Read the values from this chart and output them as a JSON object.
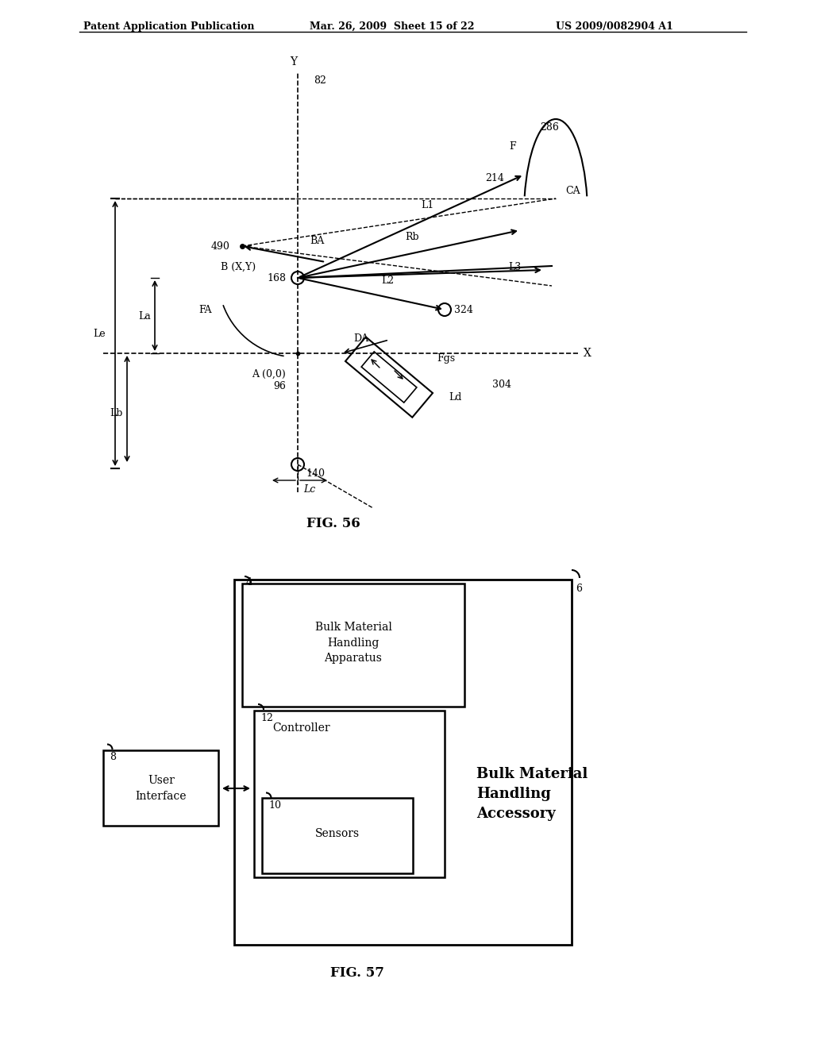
{
  "header_left": "Patent Application Publication",
  "header_mid": "Mar. 26, 2009  Sheet 15 of 22",
  "header_right": "US 2009/0082904 A1",
  "fig56_caption": "FIG. 56",
  "fig57_caption": "FIG. 57",
  "bg_color": "#ffffff",
  "line_color": "#000000"
}
